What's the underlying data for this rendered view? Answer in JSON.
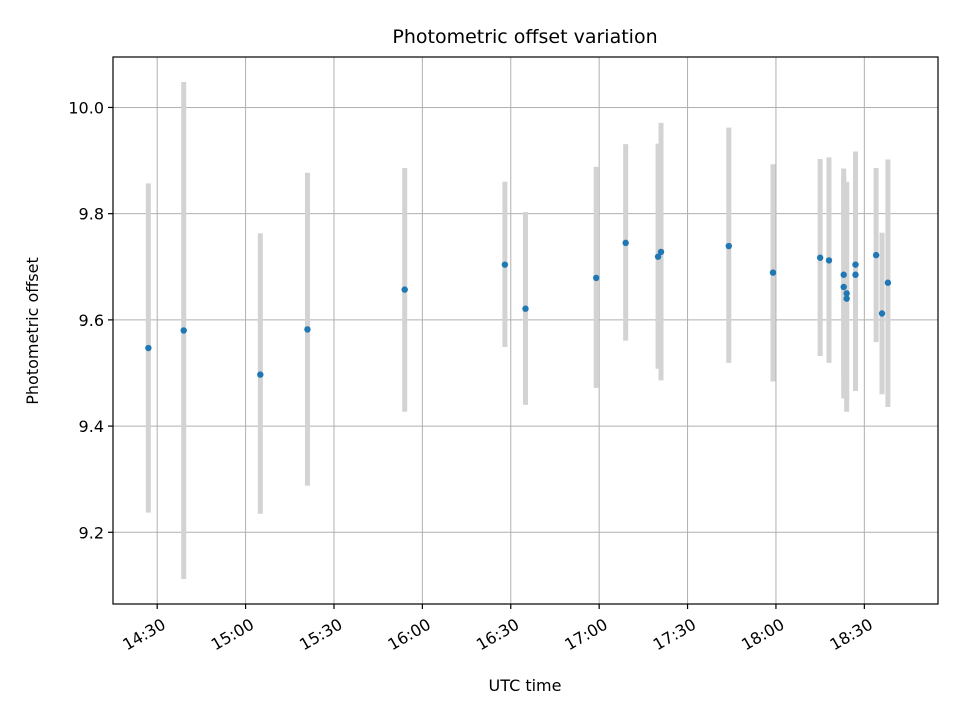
{
  "chart_data": {
    "type": "scatter",
    "title": "Photometric offset variation",
    "xlabel": "UTC time",
    "ylabel": "Photometric offset",
    "xlim": [
      "14:15",
      "18:55"
    ],
    "ylim": [
      9.065,
      10.095
    ],
    "x_ticks": [
      "14:30",
      "15:00",
      "15:30",
      "16:00",
      "16:30",
      "17:00",
      "17:30",
      "18:00",
      "18:30"
    ],
    "y_ticks": [
      "9.2",
      "9.4",
      "9.6",
      "9.8",
      "10.0"
    ],
    "grid": true,
    "points": [
      {
        "time": "14:27",
        "y": 9.547,
        "low": 9.237,
        "high": 9.857
      },
      {
        "time": "14:39",
        "y": 9.58,
        "low": 9.112,
        "high": 10.048
      },
      {
        "time": "15:05",
        "y": 9.497,
        "low": 9.235,
        "high": 9.763
      },
      {
        "time": "15:21",
        "y": 9.582,
        "low": 9.288,
        "high": 9.877
      },
      {
        "time": "15:54",
        "y": 9.657,
        "low": 9.427,
        "high": 9.886
      },
      {
        "time": "16:28",
        "y": 9.704,
        "low": 9.549,
        "high": 9.86
      },
      {
        "time": "16:35",
        "y": 9.621,
        "low": 9.44,
        "high": 9.803
      },
      {
        "time": "16:59",
        "y": 9.679,
        "low": 9.472,
        "high": 9.888
      },
      {
        "time": "17:09",
        "y": 9.745,
        "low": 9.561,
        "high": 9.931
      },
      {
        "time": "17:20",
        "y": 9.719,
        "low": 9.508,
        "high": 9.932
      },
      {
        "time": "17:21",
        "y": 9.728,
        "low": 9.486,
        "high": 9.971
      },
      {
        "time": "17:44",
        "y": 9.739,
        "low": 9.519,
        "high": 9.962
      },
      {
        "time": "17:59",
        "y": 9.689,
        "low": 9.484,
        "high": 9.893
      },
      {
        "time": "18:15",
        "y": 9.717,
        "low": 9.532,
        "high": 9.903
      },
      {
        "time": "18:18",
        "y": 9.712,
        "low": 9.519,
        "high": 9.906
      },
      {
        "time": "18:23",
        "y": 9.685,
        "low": 9.488,
        "high": 9.885
      },
      {
        "time": "18:23",
        "y": 9.662,
        "low": 9.452,
        "high": 9.87
      },
      {
        "time": "18:24",
        "y": 9.65,
        "low": 9.445,
        "high": 9.86
      },
      {
        "time": "18:24",
        "y": 9.64,
        "low": 9.427,
        "high": 9.855
      },
      {
        "time": "18:27",
        "y": 9.704,
        "low": 9.49,
        "high": 9.917
      },
      {
        "time": "18:27",
        "y": 9.685,
        "low": 9.466,
        "high": 9.907
      },
      {
        "time": "18:34",
        "y": 9.722,
        "low": 9.558,
        "high": 9.886
      },
      {
        "time": "18:36",
        "y": 9.612,
        "low": 9.46,
        "high": 9.764
      },
      {
        "time": "18:38",
        "y": 9.67,
        "low": 9.436,
        "high": 9.902
      }
    ]
  }
}
